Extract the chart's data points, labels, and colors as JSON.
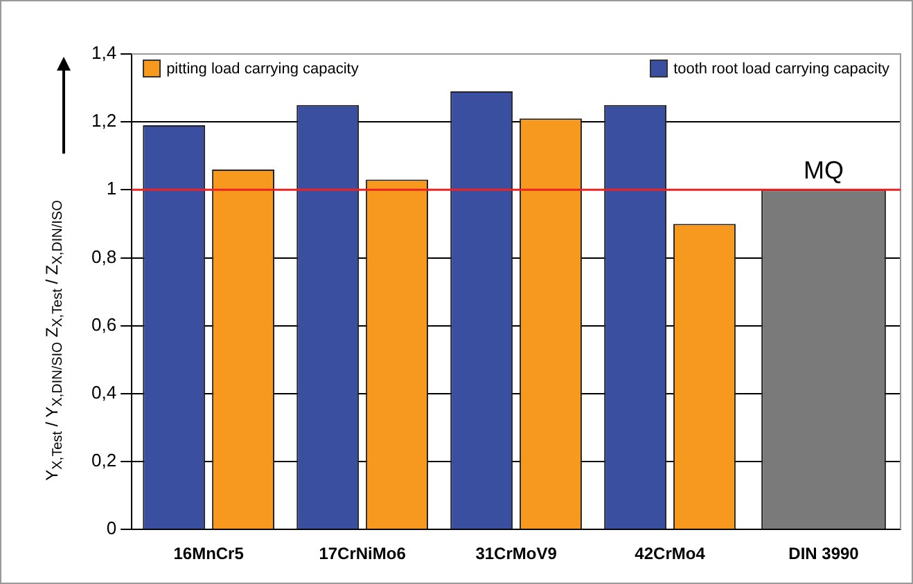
{
  "chart_data": {
    "type": "bar",
    "ylabel": "Y$_{X,Test}$ / Y$_{X,DIN/SIO}$      Z$_{X,Test}$ / Z$_{X,DIN/ISO}$",
    "categories": [
      "16MnCr5",
      "17CrNiMo6",
      "31CrMoV9",
      "42CrMo4",
      "DIN 3990"
    ],
    "series": [
      {
        "name": "tooth root load carrying capacity",
        "color": "#3a4fa0",
        "values": [
          1.19,
          1.25,
          1.29,
          1.25,
          null
        ]
      },
      {
        "name": "pitting load carrying capacity",
        "color": "#f7991e",
        "values": [
          1.06,
          1.03,
          1.21,
          0.9,
          null
        ]
      },
      {
        "color": "#7a7a7a",
        "values": [
          null,
          null,
          null,
          null,
          1
        ]
      }
    ],
    "ylim": [
      0,
      1.4
    ],
    "yticks": [
      0,
      {
        "value": 0.2,
        "label": "0,2"
      },
      {
        "value": 0.4,
        "label": "0,4"
      },
      {
        "value": 0.6,
        "label": "0,6"
      },
      {
        "value": 0.8,
        "label": "0,8"
      },
      1,
      {
        "value": 1.2,
        "label": "1,2"
      },
      {
        "value": 1.4,
        "label": "1,4"
      }
    ],
    "ref_lines": [
      {
        "axis": "y",
        "value": 1,
        "color": "#ee2222"
      }
    ],
    "annotations": [
      {
        "text": "MQ",
        "x": "DIN 3990",
        "y": 1
      }
    ],
    "grid": "y",
    "legend": "top"
  }
}
